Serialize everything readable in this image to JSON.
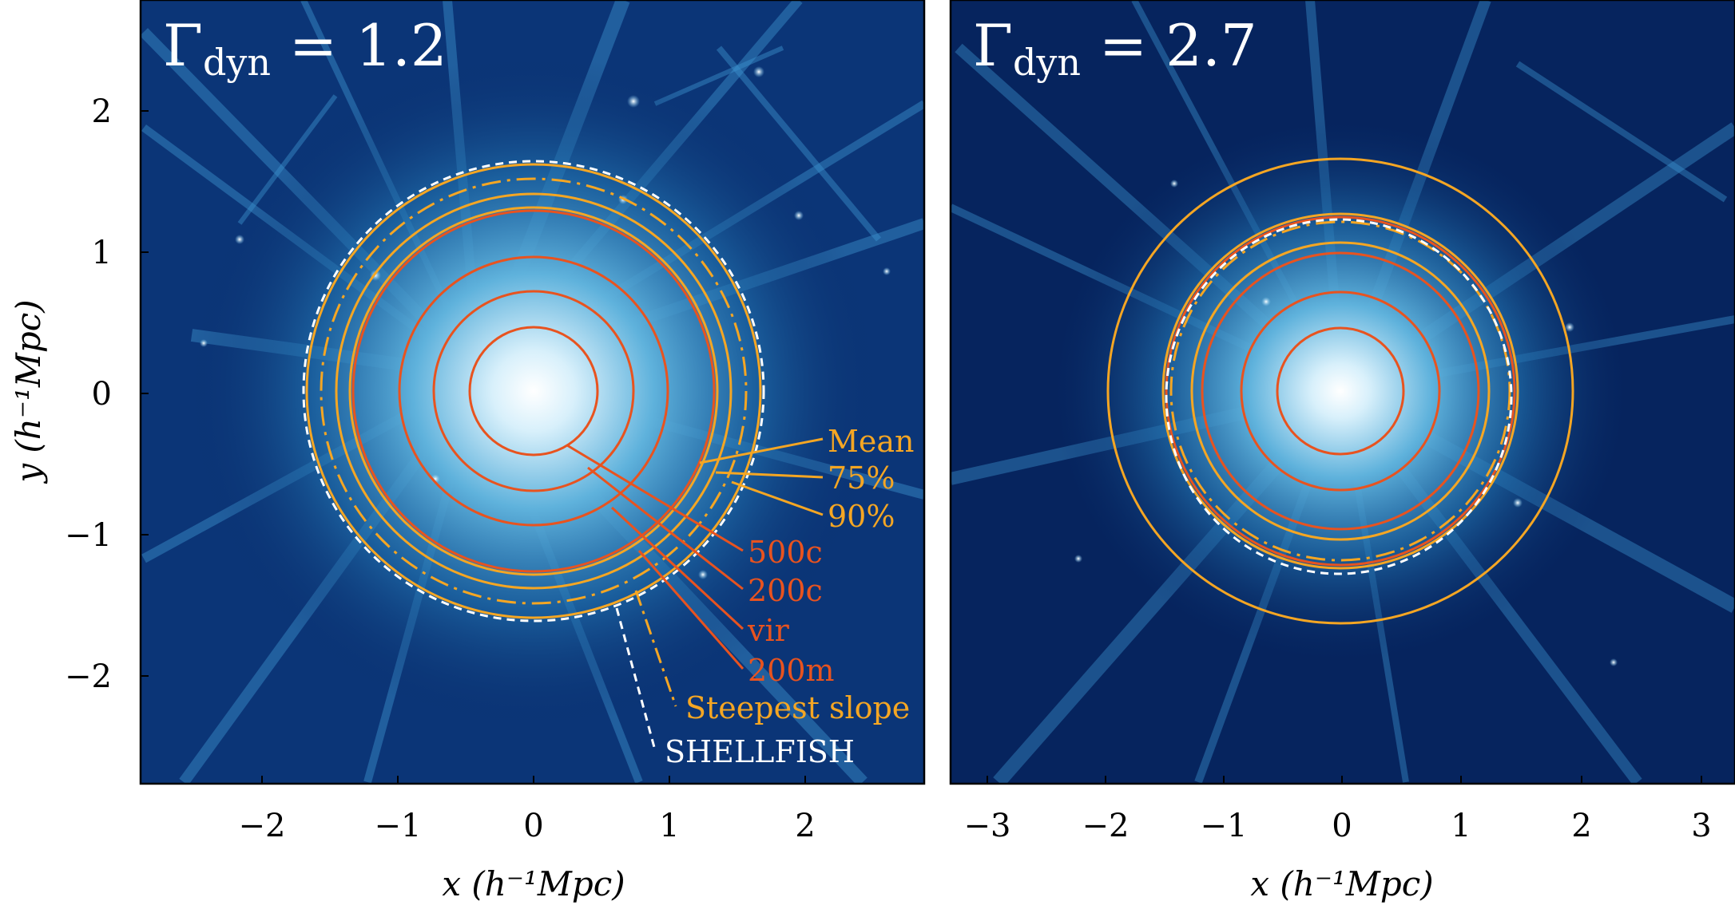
{
  "panels": [
    {
      "title_base": "Γ",
      "title_sub": "dyn",
      "title_rest": " = 1.2",
      "x_ticks": [
        "−2",
        "−1",
        "0",
        "1",
        "2"
      ],
      "y_ticks": [
        "2",
        "1",
        "0",
        "−1",
        "−2"
      ],
      "x_label": "x (h⁻¹Mpc)",
      "y_label": "y (h⁻¹Mpc)"
    },
    {
      "title_base": "Γ",
      "title_sub": "dyn",
      "title_rest": " = 2.7",
      "x_ticks": [
        "−3",
        "−2",
        "−1",
        "0",
        "1",
        "2",
        "3"
      ],
      "x_label": "x (h⁻¹Mpc)"
    }
  ],
  "legend": {
    "mean": "Mean",
    "p75": "75%",
    "p90": "90%",
    "r500c": "500c",
    "r200c": "200c",
    "rvir": "vir",
    "r200m": "200m",
    "steepest": "Steepest slope",
    "shellfish": "SHELLFISH"
  },
  "colors": {
    "background_dark": "#031a4e",
    "filament": "#2f86c4",
    "core": "#ffffff",
    "red_ring": "#e8531f",
    "orange_ring": "#f5a623",
    "shellfish": "#ffffff"
  }
}
